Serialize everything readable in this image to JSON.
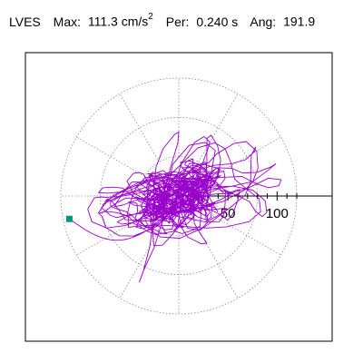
{
  "header": {
    "station": "LVES",
    "max_label": "Max:",
    "max_value": "111.3 cm/s",
    "max_exp": "2",
    "per_label": "Per:",
    "per_value": "0.240 s",
    "ang_label": "Ang:",
    "ang_value": "191.9"
  },
  "chart_data": {
    "type": "polar",
    "max_amplitude": 111.3,
    "period": 0.24,
    "angle_deg": 191.9,
    "radial_ticks": [
      50,
      100
    ],
    "radial_max": 120,
    "rings": [
      40,
      80,
      120
    ],
    "spoke_step_deg": 30,
    "particle_motion": {
      "seed": 7,
      "n": 1100,
      "components": [
        {
          "amp": 26,
          "freq": 0.24,
          "phase": 0.3,
          "ang": 18
        },
        {
          "amp": 14,
          "freq": 0.61,
          "phase": 1.7,
          "ang": 75
        },
        {
          "amp": 10,
          "freq": 1.03,
          "phase": 2.6,
          "ang": 140
        },
        {
          "amp": 6,
          "freq": 1.9,
          "phase": 0.9,
          "ang": 40
        }
      ],
      "bursts": [
        {
          "t": 0.38,
          "w": 0.05,
          "amp": 95,
          "ang": 12,
          "freq": 0.35
        },
        {
          "t": 0.58,
          "w": 0.08,
          "amp": 75,
          "ang": 8,
          "freq": 0.45
        },
        {
          "t": 0.74,
          "w": 0.04,
          "amp": 55,
          "ang": 70,
          "freq": 0.7
        }
      ],
      "end_point": [
        -111.3,
        -23.3
      ]
    },
    "trace_color": "#9900cc",
    "marker_color": "#009977"
  }
}
